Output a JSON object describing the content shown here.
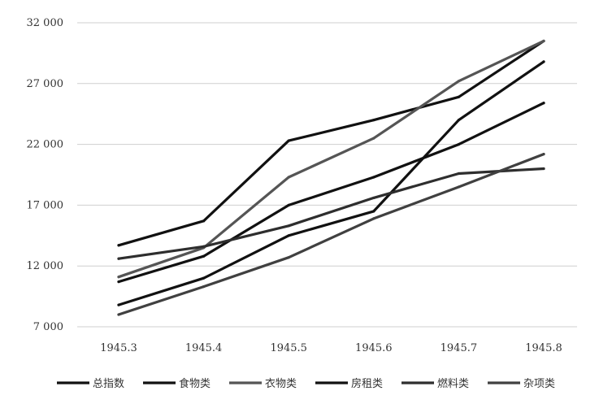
{
  "chart_data": {
    "type": "line",
    "title": "",
    "xlabel": "",
    "ylabel": "",
    "categories": [
      "1945.3",
      "1945.4",
      "1945.5",
      "1945.6",
      "1945.7",
      "1945.8"
    ],
    "y_ticks": [
      "7 000",
      "12 000",
      "17 000",
      "22 000",
      "27 000",
      "32 000"
    ],
    "ylim": [
      7000,
      32000
    ],
    "grid": "horizontal",
    "legend_position": "bottom",
    "series": [
      {
        "name": "总指数",
        "color": "#111111",
        "values": [
          13700,
          15700,
          22300,
          24000,
          25900,
          30500
        ]
      },
      {
        "name": "食物类",
        "color": "#111111",
        "values": [
          10700,
          12800,
          17000,
          19300,
          22000,
          25400
        ]
      },
      {
        "name": "衣物类",
        "color": "#555555",
        "values": [
          11100,
          13500,
          19300,
          22500,
          27200,
          30500
        ]
      },
      {
        "name": "房租类",
        "color": "#111111",
        "values": [
          8800,
          11000,
          14500,
          16500,
          24000,
          28800
        ]
      },
      {
        "name": "燃料类",
        "color": "#2e2e2e",
        "values": [
          12600,
          13600,
          15300,
          17600,
          19600,
          20000
        ]
      },
      {
        "name": "杂项类",
        "color": "#404040",
        "values": [
          8000,
          10300,
          12700,
          15900,
          18500,
          21200
        ]
      }
    ]
  }
}
